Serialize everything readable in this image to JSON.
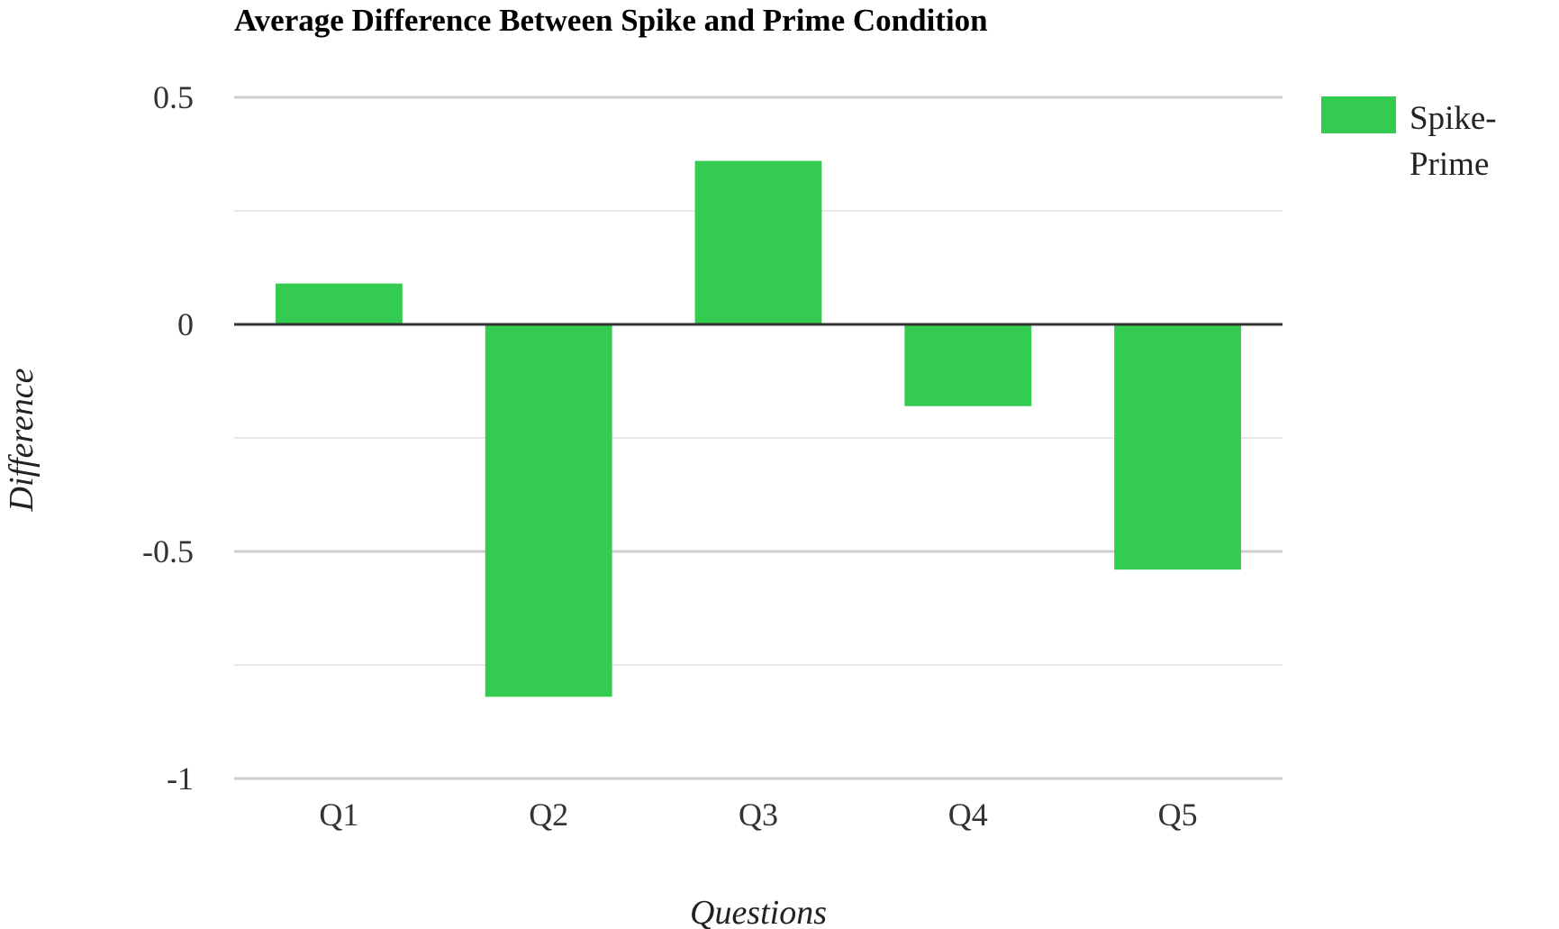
{
  "chart_data": {
    "type": "bar",
    "title": "Average Difference Between Spike and Prime Condition",
    "xlabel": "Questions",
    "ylabel": "Difference",
    "categories": [
      "Q1",
      "Q2",
      "Q3",
      "Q4",
      "Q5"
    ],
    "series": [
      {
        "name": "Spike-Prime",
        "values": [
          0.09,
          -0.82,
          0.36,
          -0.18,
          -0.54
        ],
        "color": "#34cc50"
      }
    ],
    "ylim": [
      -1,
      0.5
    ],
    "yticks": [
      0.5,
      0,
      -0.5,
      -1
    ],
    "ytick_labels": [
      "0.5",
      "0",
      "-0.5",
      "-1"
    ],
    "grid": true,
    "legend": {
      "position": "top-right",
      "label_lines": [
        "Spike-",
        "Prime"
      ]
    }
  }
}
